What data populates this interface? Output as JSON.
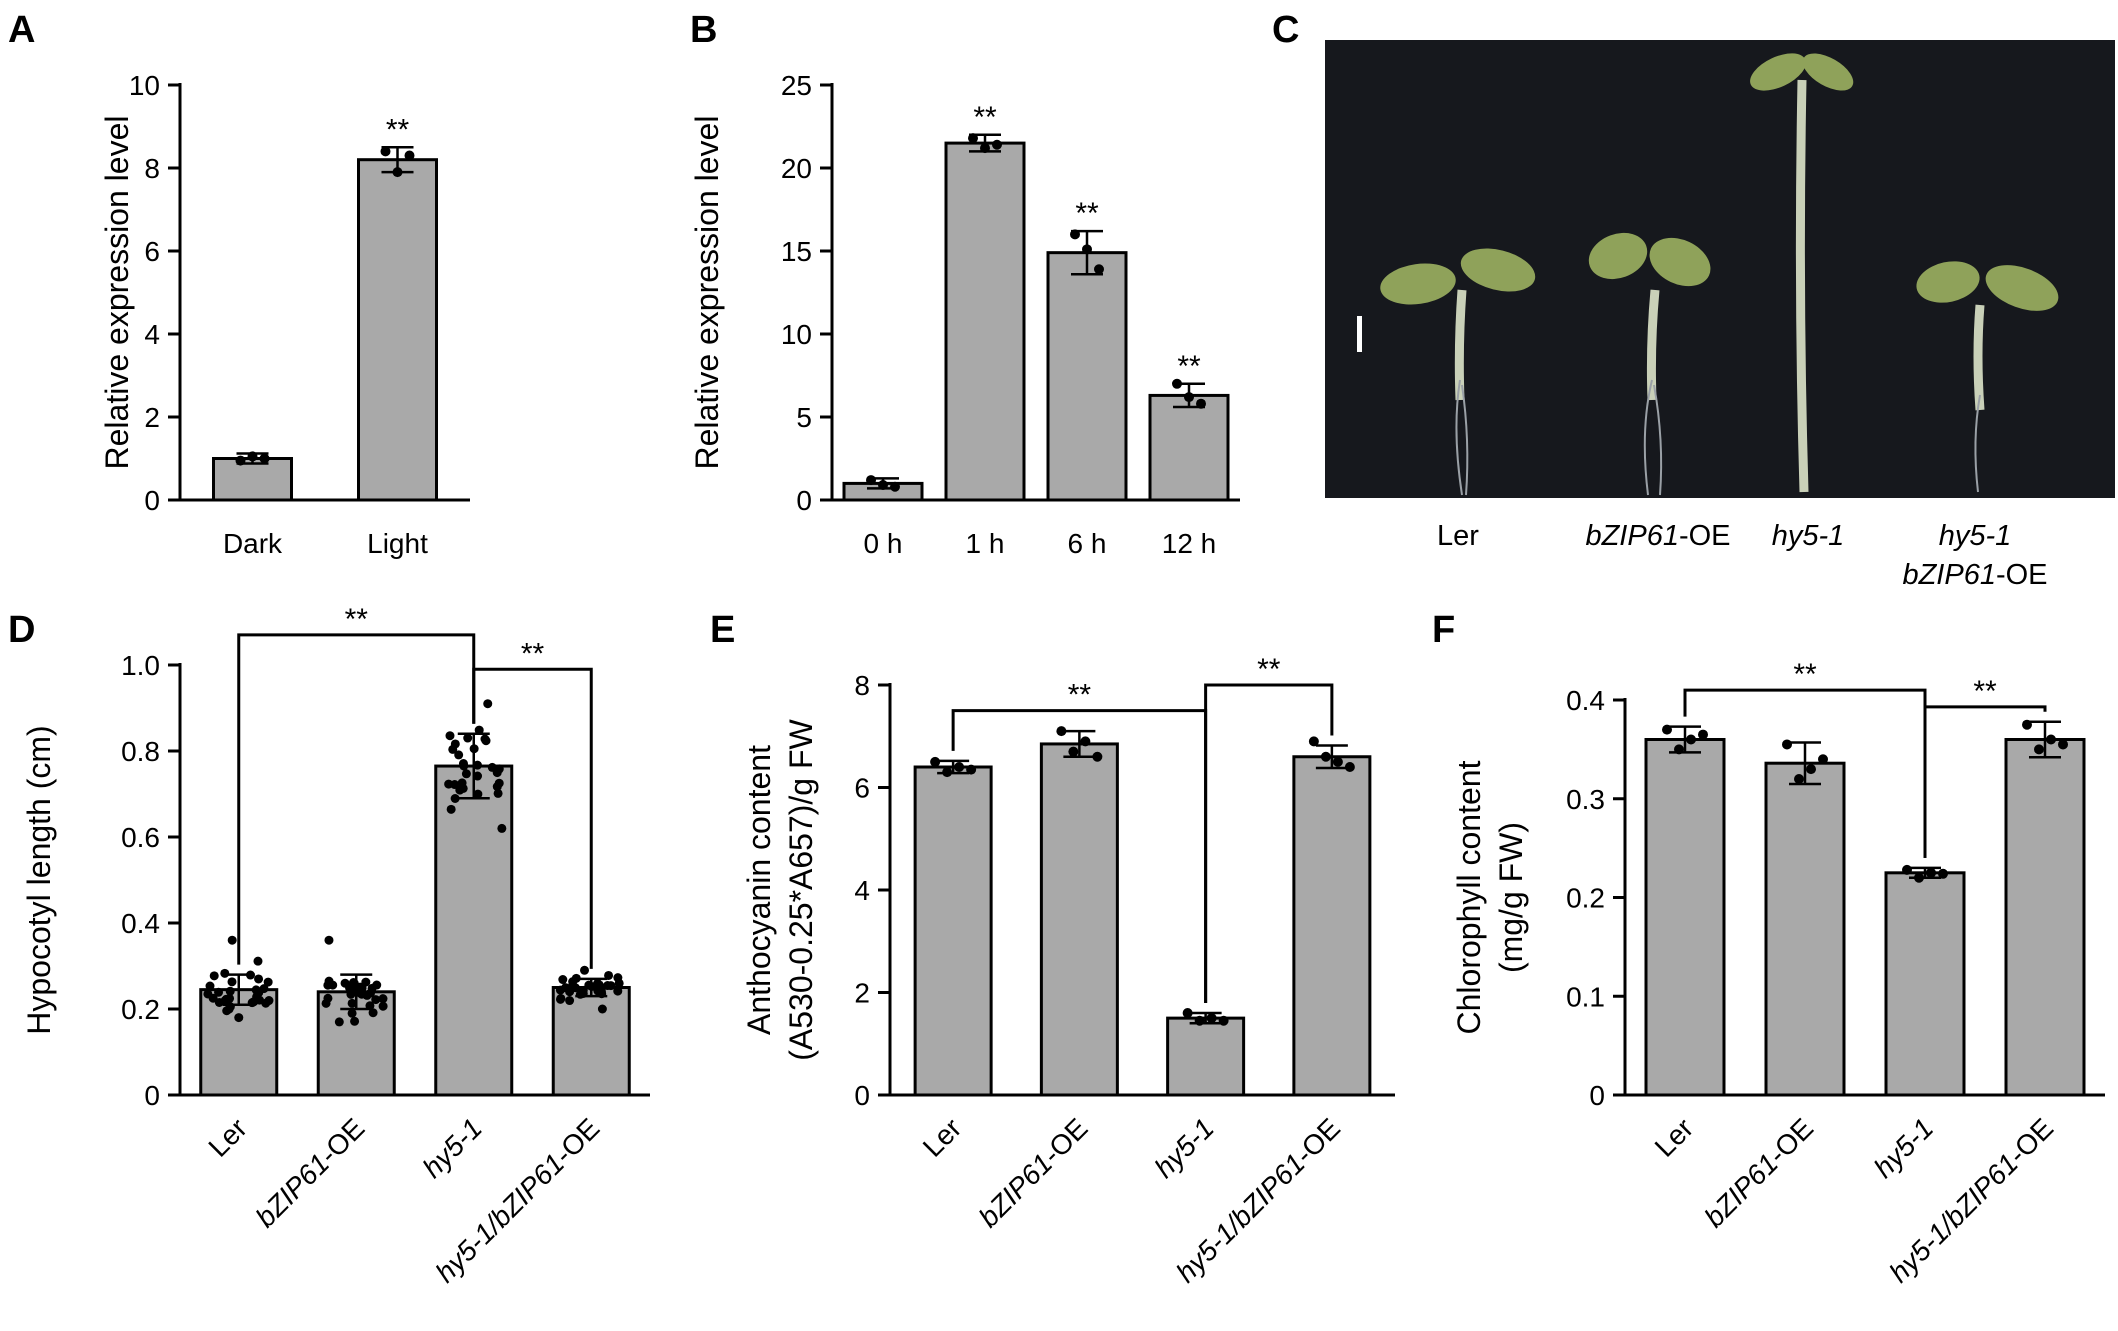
{
  "panel_labels": {
    "A": "A",
    "B": "B",
    "C": "C",
    "D": "D",
    "E": "E",
    "F": "F"
  },
  "photo_panel": {
    "labels": [
      {
        "parts": [
          {
            "t": "Ler",
            "i": false
          }
        ]
      },
      {
        "parts": [
          {
            "t": "bZIP61",
            "i": true
          },
          {
            "t": "-OE",
            "i": false
          }
        ]
      },
      {
        "parts": [
          {
            "t": "hy5-1",
            "i": true
          }
        ]
      },
      {
        "parts": [
          {
            "t": "hy5-1",
            "i": true
          }
        ],
        "line2": [
          {
            "t": "bZIP61",
            "i": true
          },
          {
            "t": "-OE",
            "i": false
          }
        ]
      }
    ],
    "colors": {
      "background": "#16181d",
      "seedling": "#8fa25a",
      "hypocotyl": "#c9d0b8"
    }
  },
  "chart_data": [
    {
      "id": "A",
      "type": "bar",
      "categories": [
        "Dark",
        "Light"
      ],
      "values": [
        1.0,
        8.2
      ],
      "errors": [
        0.12,
        0.3
      ],
      "points": [
        [
          0.95,
          1.05,
          1.0
        ],
        [
          8.4,
          7.9,
          8.3
        ]
      ],
      "significance": [
        "",
        "**"
      ],
      "ylabel": "Relative expression level",
      "ylim": [
        0,
        10
      ],
      "yticks": [
        "0",
        "2",
        "4",
        "6",
        "8",
        "10"
      ],
      "brackets": []
    },
    {
      "id": "B",
      "type": "bar",
      "categories": [
        "0 h",
        "1 h",
        "6 h",
        "12 h"
      ],
      "values": [
        1.0,
        21.5,
        14.9,
        6.3
      ],
      "errors": [
        0.3,
        0.5,
        1.3,
        0.7
      ],
      "points": [
        [
          1.2,
          0.9,
          0.8
        ],
        [
          21.8,
          21.2,
          21.4
        ],
        [
          16.0,
          15.1,
          13.9
        ],
        [
          7.0,
          6.2,
          5.8
        ]
      ],
      "significance": [
        "",
        "**",
        "**",
        "**"
      ],
      "ylabel": "Relative expression level",
      "ylim": [
        0,
        25
      ],
      "yticks": [
        "0",
        "5",
        "10",
        "15",
        "20",
        "25"
      ],
      "brackets": []
    },
    {
      "id": "D",
      "type": "bar",
      "categories": [
        "Ler",
        "bZIP61-OE",
        "hy5-1",
        "hy5-1/bZIP61-OE"
      ],
      "italic_parts": [
        [],
        [
          "bZIP61"
        ],
        [
          "hy5-1"
        ],
        [
          "hy5-1/bZIP61"
        ]
      ],
      "values": [
        0.245,
        0.24,
        0.765,
        0.25
      ],
      "errors": [
        0.035,
        0.04,
        0.075,
        0.02
      ],
      "points_spread": [
        [
          0.18,
          0.36
        ],
        [
          0.17,
          0.36
        ],
        [
          0.62,
          0.91
        ],
        [
          0.2,
          0.29
        ]
      ],
      "points_count": 30,
      "significance": [
        "",
        "",
        "",
        ""
      ],
      "ylabel": "Hypocotyl length (cm)",
      "ylim": [
        0,
        1.0
      ],
      "yticks": [
        "0",
        "0.2",
        "0.4",
        "0.6",
        "0.8",
        "1.0"
      ],
      "brackets": [
        {
          "from": 0,
          "to": 2,
          "level": 1.07,
          "label": "**"
        },
        {
          "from": 2,
          "to": 3,
          "level": 0.99,
          "label": "**"
        }
      ]
    },
    {
      "id": "E",
      "type": "bar",
      "categories": [
        "Ler",
        "bZIP61-OE",
        "hy5-1",
        "hy5-1/bZIP61-OE"
      ],
      "italic_parts": [
        [],
        [
          "bZIP61"
        ],
        [
          "hy5-1"
        ],
        [
          "hy5-1/bZIP61"
        ]
      ],
      "values": [
        6.4,
        6.85,
        1.5,
        6.6
      ],
      "errors": [
        0.12,
        0.25,
        0.1,
        0.22
      ],
      "points": [
        [
          6.5,
          6.3,
          6.4,
          6.35
        ],
        [
          7.1,
          6.7,
          6.9,
          6.6
        ],
        [
          1.6,
          1.45,
          1.5,
          1.45
        ],
        [
          6.9,
          6.6,
          6.5,
          6.4
        ]
      ],
      "significance": [
        "",
        "",
        "",
        ""
      ],
      "ylabel": "Anthocyanin content",
      "ylabel2": "(A530-0.25*A657)/g FW",
      "ylim": [
        0,
        8
      ],
      "yticks": [
        "0",
        "2",
        "4",
        "6",
        "8"
      ],
      "brackets": [
        {
          "from": 0,
          "to": 2,
          "level": 7.5,
          "label": "**"
        },
        {
          "from": 2,
          "to": 3,
          "level": 8.0,
          "label": "**"
        }
      ]
    },
    {
      "id": "F",
      "type": "bar",
      "categories": [
        "Ler",
        "bZIP61-OE",
        "hy5-1",
        "hy5-1/bZIP61-OE"
      ],
      "italic_parts": [
        [],
        [
          "bZIP61"
        ],
        [
          "hy5-1"
        ],
        [
          "hy5-1/bZIP61"
        ]
      ],
      "values": [
        0.36,
        0.336,
        0.225,
        0.36
      ],
      "errors": [
        0.013,
        0.021,
        0.005,
        0.018
      ],
      "points": [
        [
          0.37,
          0.35,
          0.36,
          0.365
        ],
        [
          0.355,
          0.32,
          0.33,
          0.34
        ],
        [
          0.228,
          0.22,
          0.225,
          0.224
        ],
        [
          0.375,
          0.35,
          0.36,
          0.355
        ]
      ],
      "significance": [
        "",
        "",
        "",
        ""
      ],
      "ylabel": "Chlorophyll content",
      "ylabel2": "(mg/g FW)",
      "ylim": [
        0,
        0.4
      ],
      "yticks": [
        "0",
        "0.1",
        "0.2",
        "0.3",
        "0.4"
      ],
      "brackets": [
        {
          "from": 0,
          "to": 2,
          "level": 0.41,
          "label": "**"
        },
        {
          "from": 2,
          "to": 3,
          "level": 0.393,
          "label": "**"
        }
      ]
    }
  ]
}
